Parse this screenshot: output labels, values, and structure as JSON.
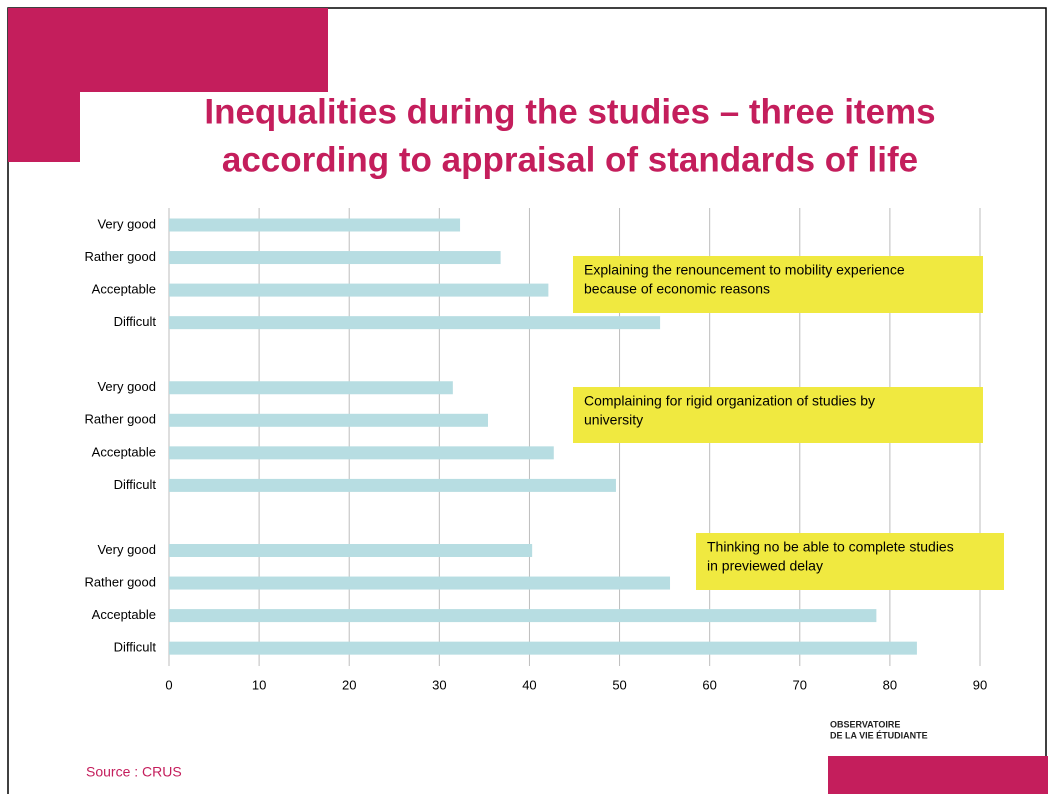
{
  "chart_data": {
    "type": "barh",
    "title": [
      "Inequalities during the studies – three items",
      "according to appraisal of standards of life"
    ],
    "categories": [
      "Very good",
      "Rather good",
      "Acceptable",
      "Difficult",
      null,
      "Very good",
      "Rather good",
      "Acceptable",
      "Difficult",
      null,
      "Very good",
      "Rather good",
      "Acceptable",
      "Difficult"
    ],
    "values": [
      32.3,
      36.8,
      42.1,
      54.5,
      null,
      31.5,
      35.4,
      42.7,
      49.6,
      null,
      40.3,
      55.6,
      78.5,
      83.0
    ],
    "color": "#b7dde2",
    "xlim": [
      0,
      90
    ],
    "xticks": [
      0,
      10,
      20,
      30,
      40,
      50,
      60,
      70,
      80,
      90
    ],
    "grid": true,
    "annotations": [
      [
        "Explaining the renouncement to mobility experience",
        "because of economic reasons"
      ],
      [
        "Complaining for  rigid organization of studies by",
        "university"
      ],
      [
        "Thinking no be able to complete studies",
        "in previewed delay"
      ]
    ],
    "annotation_color": "#f0e940",
    "logo": [
      "OBSERVATOIRE",
      "DE LA VIE ÉTUDIANTE"
    ],
    "source": "Source : CRUS"
  }
}
